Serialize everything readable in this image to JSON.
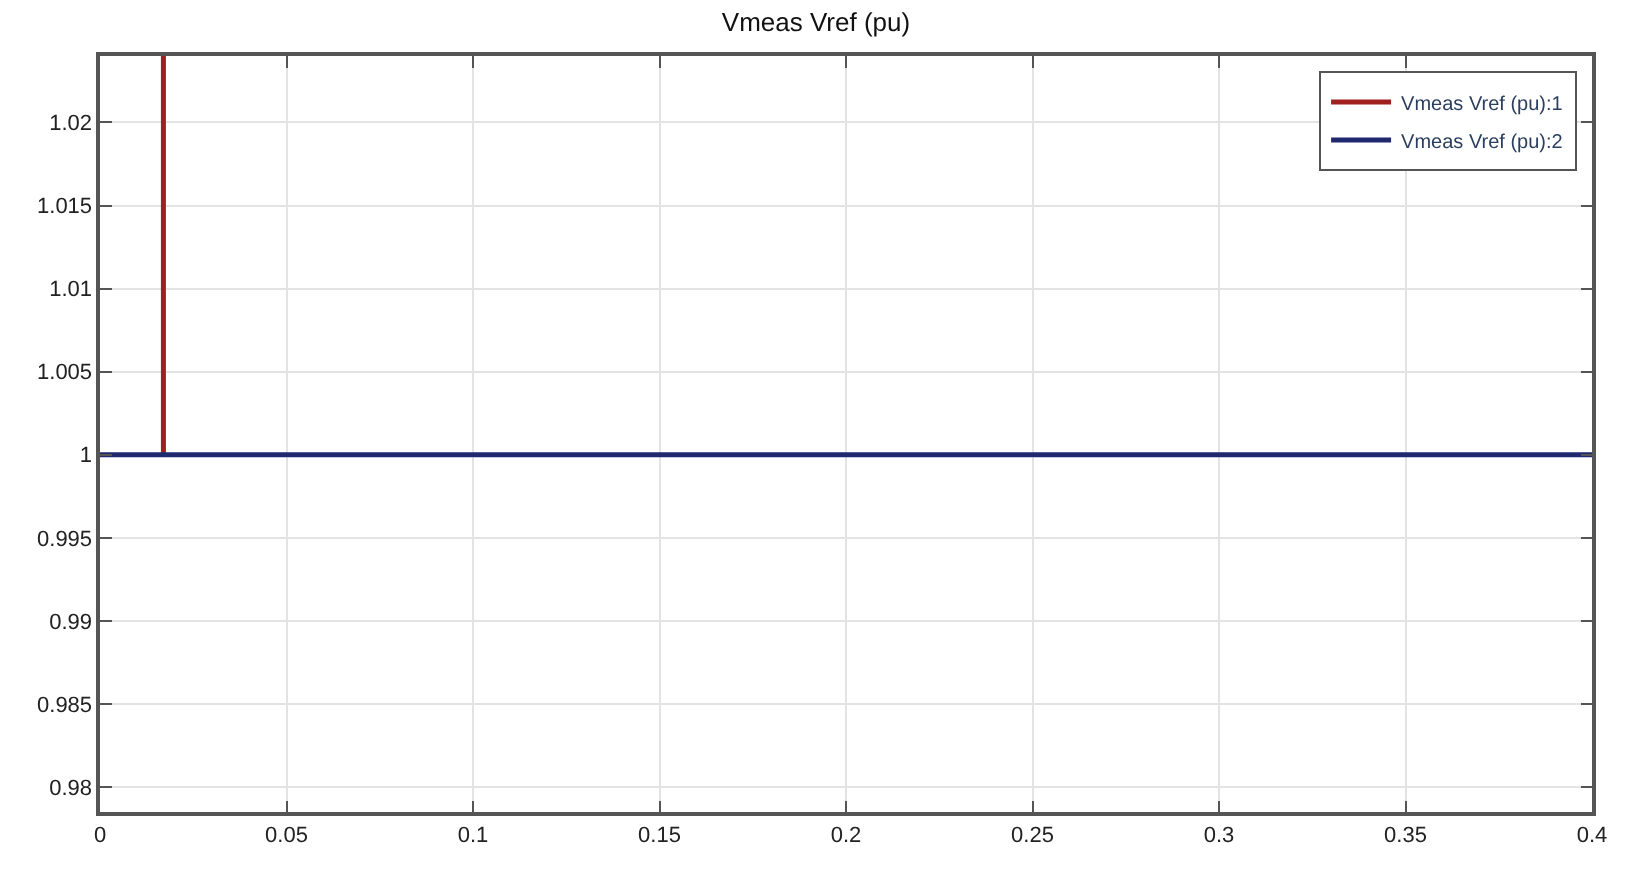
{
  "chart_data": {
    "type": "line",
    "title": "Vmeas Vref (pu)",
    "series": [
      {
        "name": "Vmeas Vref (pu):1",
        "color": "#a02020",
        "x": [
          0.017,
          0.017
        ],
        "values": [
          1.024,
          1.0
        ]
      },
      {
        "name": "Vmeas Vref (pu):2",
        "color": "#202870",
        "x": [
          0,
          0.4
        ],
        "values": [
          1.0,
          1.0
        ]
      }
    ],
    "xlim": [
      0,
      0.4
    ],
    "xticks": [
      0,
      0.05,
      0.1,
      0.15,
      0.2,
      0.25,
      0.3,
      0.35,
      0.4
    ],
    "ylim": [
      0.9785,
      1.024
    ],
    "yticks": [
      0.98,
      0.985,
      0.99,
      0.995,
      1,
      1.005,
      1.01,
      1.015,
      1.02
    ],
    "grid": true,
    "legend": "top right",
    "marker": "none",
    "line_style": "solid"
  }
}
